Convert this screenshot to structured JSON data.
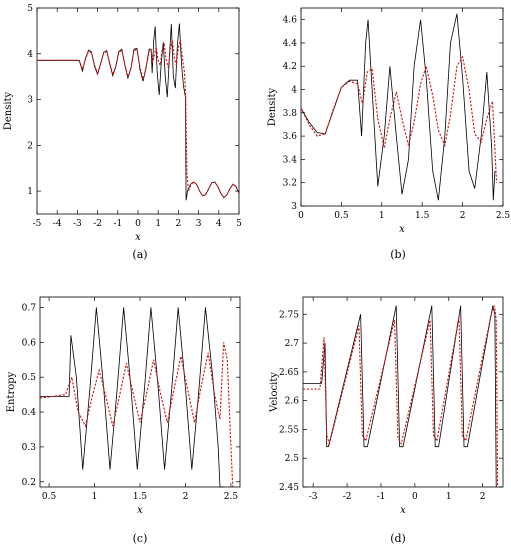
{
  "colors": {
    "exact": "#000000",
    "numeric": "#cc1111",
    "frame": "#000000"
  },
  "chart_data": [
    {
      "id": "a",
      "type": "line",
      "panel_label": "(a)",
      "title": "",
      "xlabel": "x",
      "ylabel": "Density",
      "xlim": [
        -5,
        5
      ],
      "ylim": [
        0.5,
        5
      ],
      "xticks": [
        -5,
        -4,
        -3,
        -2,
        -1,
        0,
        1,
        2,
        3,
        4,
        5
      ],
      "yticks": [
        1,
        2,
        3,
        4,
        5
      ],
      "grid": false,
      "series": [
        {
          "style": "exact",
          "x": [
            -5,
            -3,
            -2.9,
            -2.75,
            -2.6,
            -2.45,
            -2.3,
            -2.15,
            -2.0,
            -1.85,
            -1.7,
            -1.55,
            -1.4,
            -1.25,
            -1.1,
            -0.95,
            -0.8,
            -0.65,
            -0.5,
            -0.35,
            -0.2,
            -0.05,
            0.1,
            0.25,
            0.4,
            0.55,
            0.65,
            0.7,
            0.78,
            0.85,
            0.95,
            1.05,
            1.15,
            1.25,
            1.35,
            1.45,
            1.55,
            1.65,
            1.75,
            1.85,
            1.95,
            2.05,
            2.15,
            2.25,
            2.35,
            2.38,
            2.45,
            2.6,
            2.75,
            2.9,
            3.05,
            3.2,
            3.35,
            3.5,
            3.65,
            3.8,
            3.95,
            4.1,
            4.25,
            4.4,
            4.55,
            4.7,
            4.85,
            5.0
          ],
          "y": [
            3.857,
            3.857,
            3.84,
            3.62,
            3.9,
            4.08,
            4.04,
            3.72,
            3.55,
            3.78,
            4.03,
            4.07,
            3.78,
            3.52,
            3.72,
            4.05,
            4.1,
            3.75,
            3.47,
            3.68,
            4.1,
            4.12,
            3.65,
            3.4,
            3.7,
            4.1,
            4.1,
            3.58,
            4.3,
            4.6,
            3.6,
            3.1,
            3.8,
            4.25,
            3.5,
            3.05,
            3.9,
            4.65,
            3.5,
            3.25,
            4.2,
            4.66,
            3.8,
            3.3,
            3.05,
            0.8,
            1.0,
            1.15,
            1.2,
            1.15,
            1.0,
            0.9,
            0.92,
            1.05,
            1.18,
            1.2,
            1.1,
            0.95,
            0.86,
            0.92,
            1.05,
            1.15,
            1.1,
            0.95
          ]
        },
        {
          "style": "numeric",
          "x": [
            -5,
            -3,
            -2.9,
            -2.75,
            -2.6,
            -2.45,
            -2.3,
            -2.15,
            -2.0,
            -1.85,
            -1.7,
            -1.55,
            -1.4,
            -1.25,
            -1.1,
            -0.95,
            -0.8,
            -0.65,
            -0.5,
            -0.35,
            -0.2,
            -0.05,
            0.1,
            0.25,
            0.4,
            0.55,
            0.65,
            0.72,
            0.8,
            0.9,
            1.0,
            1.1,
            1.2,
            1.3,
            1.4,
            1.5,
            1.6,
            1.7,
            1.8,
            1.9,
            2.0,
            2.1,
            2.2,
            2.3,
            2.36,
            2.42,
            2.5,
            2.6,
            2.75,
            2.9,
            3.05,
            3.2,
            3.35,
            3.5,
            3.65,
            3.8,
            3.95,
            4.1,
            4.25,
            4.4,
            4.55,
            4.7,
            4.85,
            5.0
          ],
          "y": [
            3.857,
            3.857,
            3.85,
            3.66,
            3.88,
            4.06,
            4.02,
            3.75,
            3.58,
            3.78,
            4.01,
            4.05,
            3.8,
            3.55,
            3.72,
            4.03,
            4.08,
            3.77,
            3.5,
            3.68,
            4.06,
            4.1,
            3.7,
            3.45,
            3.7,
            4.06,
            4.08,
            3.8,
            3.95,
            4.15,
            3.85,
            3.75,
            4.1,
            4.2,
            3.85,
            3.7,
            4.1,
            4.3,
            3.9,
            3.75,
            4.15,
            4.3,
            3.9,
            3.6,
            3.1,
            1.4,
            1.0,
            1.12,
            1.2,
            1.15,
            1.0,
            0.9,
            0.92,
            1.05,
            1.18,
            1.2,
            1.1,
            0.95,
            0.86,
            0.92,
            1.05,
            1.15,
            1.1,
            0.95
          ]
        }
      ]
    },
    {
      "id": "b",
      "type": "line",
      "panel_label": "(b)",
      "title": "",
      "xlabel": "x",
      "ylabel": "Density",
      "xlim": [
        0,
        2.5
      ],
      "ylim": [
        3.0,
        4.7
      ],
      "xticks": [
        0,
        0.5,
        1,
        1.5,
        2,
        2.5
      ],
      "yticks": [
        3,
        3.2,
        3.4,
        3.6,
        3.8,
        4,
        4.2,
        4.4,
        4.6
      ],
      "grid": false,
      "series": [
        {
          "style": "exact",
          "x": [
            0,
            0.1,
            0.2,
            0.3,
            0.4,
            0.5,
            0.6,
            0.7,
            0.75,
            0.8,
            0.83,
            0.88,
            0.95,
            1.03,
            1.1,
            1.18,
            1.25,
            1.33,
            1.4,
            1.48,
            1.55,
            1.63,
            1.7,
            1.78,
            1.85,
            1.93,
            2.0,
            2.08,
            2.15,
            2.23,
            2.3,
            2.36,
            2.38,
            2.4
          ],
          "y": [
            3.84,
            3.72,
            3.63,
            3.62,
            3.82,
            4.02,
            4.08,
            4.08,
            3.6,
            4.4,
            4.6,
            4.0,
            3.17,
            3.6,
            4.2,
            3.6,
            3.1,
            3.4,
            4.2,
            4.6,
            4.1,
            3.3,
            3.05,
            3.6,
            4.4,
            4.65,
            4.1,
            3.3,
            3.15,
            3.6,
            4.15,
            3.5,
            3.05,
            3.3
          ]
        },
        {
          "style": "numeric",
          "x": [
            0,
            0.1,
            0.2,
            0.3,
            0.4,
            0.5,
            0.6,
            0.7,
            0.76,
            0.82,
            0.88,
            0.95,
            1.03,
            1.1,
            1.18,
            1.25,
            1.33,
            1.4,
            1.48,
            1.55,
            1.63,
            1.7,
            1.78,
            1.85,
            1.93,
            2.0,
            2.08,
            2.15,
            2.23,
            2.3,
            2.37,
            2.42
          ],
          "y": [
            3.84,
            3.7,
            3.6,
            3.62,
            3.83,
            4.02,
            4.07,
            4.05,
            3.88,
            4.15,
            4.18,
            3.75,
            3.5,
            3.75,
            3.98,
            3.75,
            3.52,
            3.72,
            4.05,
            4.2,
            3.95,
            3.65,
            3.52,
            3.78,
            4.2,
            4.28,
            4.0,
            3.62,
            3.55,
            3.75,
            3.9,
            3.2
          ]
        }
      ]
    },
    {
      "id": "c",
      "type": "line",
      "panel_label": "(c)",
      "title": "",
      "xlabel": "x",
      "ylabel": "Entropy",
      "xlim": [
        0.4,
        2.6
      ],
      "ylim": [
        0.185,
        0.73
      ],
      "xticks": [
        0.5,
        1,
        1.5,
        2,
        2.5
      ],
      "yticks": [
        0.2,
        0.3,
        0.4,
        0.5,
        0.6,
        0.7
      ],
      "grid": false,
      "series": [
        {
          "style": "exact",
          "x": [
            0.4,
            0.72,
            0.74,
            0.8,
            0.87,
            0.95,
            1.02,
            1.1,
            1.17,
            1.25,
            1.32,
            1.4,
            1.47,
            1.55,
            1.62,
            1.7,
            1.77,
            1.85,
            1.92,
            2.0,
            2.07,
            2.15,
            2.22,
            2.3,
            2.36,
            2.38,
            2.4,
            2.42
          ],
          "y": [
            0.445,
            0.445,
            0.62,
            0.5,
            0.235,
            0.47,
            0.7,
            0.47,
            0.235,
            0.47,
            0.7,
            0.47,
            0.235,
            0.47,
            0.7,
            0.47,
            0.235,
            0.47,
            0.7,
            0.47,
            0.235,
            0.47,
            0.7,
            0.5,
            0.3,
            0.185,
            0.185,
            0.185
          ]
        },
        {
          "style": "numeric",
          "x": [
            0.4,
            0.68,
            0.75,
            0.82,
            0.9,
            0.97,
            1.05,
            1.12,
            1.2,
            1.27,
            1.35,
            1.42,
            1.5,
            1.57,
            1.65,
            1.72,
            1.8,
            1.87,
            1.95,
            2.02,
            2.1,
            2.17,
            2.25,
            2.32,
            2.38,
            2.42,
            2.46,
            2.5,
            2.52
          ],
          "y": [
            0.44,
            0.45,
            0.5,
            0.4,
            0.36,
            0.44,
            0.52,
            0.45,
            0.36,
            0.44,
            0.54,
            0.46,
            0.37,
            0.45,
            0.55,
            0.46,
            0.37,
            0.46,
            0.56,
            0.47,
            0.37,
            0.47,
            0.57,
            0.45,
            0.38,
            0.6,
            0.55,
            0.3,
            0.185
          ]
        }
      ]
    },
    {
      "id": "d",
      "type": "line",
      "panel_label": "(d)",
      "title": "",
      "xlabel": "x",
      "ylabel": "Velocity",
      "xlim": [
        -3.3,
        2.6
      ],
      "ylim": [
        2.45,
        2.78
      ],
      "xticks": [
        -3,
        -2,
        -1,
        0,
        1,
        2
      ],
      "yticks": [
        2.45,
        2.5,
        2.55,
        2.6,
        2.65,
        2.7,
        2.75
      ],
      "grid": false,
      "series": [
        {
          "style": "exact",
          "x": [
            -3.3,
            -2.75,
            -2.65,
            -2.6,
            -2.55,
            -1.6,
            -1.5,
            -1.4,
            -0.55,
            -0.45,
            -0.35,
            0.5,
            0.6,
            0.7,
            1.35,
            1.45,
            1.55,
            2.3,
            2.36,
            2.4
          ],
          "y": [
            2.63,
            2.63,
            2.7,
            2.52,
            2.52,
            2.75,
            2.52,
            2.52,
            2.765,
            2.52,
            2.52,
            2.765,
            2.52,
            2.52,
            2.765,
            2.52,
            2.52,
            2.765,
            2.75,
            2.45
          ]
        },
        {
          "style": "numeric",
          "x": [
            -3.3,
            -2.8,
            -2.68,
            -2.6,
            -2.52,
            -1.65,
            -1.55,
            -1.45,
            -0.6,
            -0.5,
            -0.4,
            0.45,
            0.55,
            0.65,
            1.3,
            1.4,
            1.5,
            2.25,
            2.35,
            2.4,
            2.42,
            2.44
          ],
          "y": [
            2.62,
            2.62,
            2.71,
            2.54,
            2.525,
            2.73,
            2.54,
            2.53,
            2.74,
            2.535,
            2.525,
            2.74,
            2.54,
            2.53,
            2.745,
            2.54,
            2.53,
            2.75,
            2.765,
            2.74,
            2.6,
            2.45
          ]
        }
      ]
    }
  ]
}
